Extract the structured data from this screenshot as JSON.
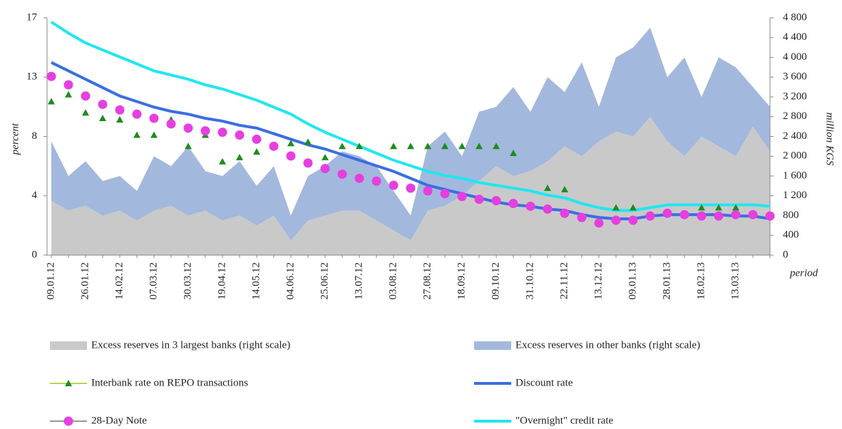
{
  "chart_data": {
    "type": "line",
    "y_label": "percent",
    "y2_label": "million KGS",
    "x_label": "period",
    "categories": [
      "09.01.12",
      null,
      "26.01.12",
      null,
      "14.02.12",
      null,
      "07.03.12",
      null,
      "30.03.12",
      null,
      "19.04.12",
      null,
      "14.05.12",
      null,
      "04.06.12",
      null,
      "25.06.12",
      null,
      "13.07.12",
      null,
      "03.08.12",
      null,
      "27.08.12",
      null,
      "18.09.12",
      null,
      "09.10.12",
      null,
      "31.10.12",
      null,
      "22.11.12",
      null,
      "13.12.12",
      null,
      "09.01.13",
      null,
      "28.01.13",
      null,
      "18.02.13",
      null,
      "13.03.13",
      null,
      null
    ],
    "ylim": [
      0,
      17
    ],
    "yticks": [
      0,
      {
        "value": 4.25,
        "label": "4"
      },
      {
        "value": 8.5,
        "label": "8"
      },
      {
        "value": 12.75,
        "label": "13"
      },
      17
    ],
    "y2lim": [
      0,
      4800
    ],
    "y2ticks": [
      0,
      400,
      800,
      {
        "value": 1200,
        "label": "1 200"
      },
      {
        "value": 1600,
        "label": "1 600"
      },
      {
        "value": 2000,
        "label": "2 000"
      },
      {
        "value": 2400,
        "label": "2 400"
      },
      {
        "value": 2800,
        "label": "2 800"
      },
      {
        "value": 3200,
        "label": "3 200"
      },
      {
        "value": 3600,
        "label": "3 600"
      },
      {
        "value": 4000,
        "label": "4 000"
      },
      {
        "value": 4400,
        "label": "4 400"
      },
      {
        "value": 4800,
        "label": "4 800"
      }
    ],
    "stacked_areas": true,
    "grid": false,
    "series": [
      {
        "name": "Excess reserves in 3 largest banks  (right scale)",
        "kind": "area",
        "axis": "y2",
        "color": "#c9c9c9",
        "values": [
          1100,
          900,
          1000,
          800,
          900,
          700,
          900,
          1000,
          800,
          900,
          700,
          800,
          600,
          800,
          300,
          700,
          800,
          900,
          900,
          700,
          500,
          300,
          900,
          1000,
          1200,
          1500,
          1800,
          1600,
          1700,
          1900,
          2200,
          2000,
          2300,
          2500,
          2400,
          2800,
          2300,
          2000,
          2400,
          2200,
          2000,
          2600,
          2100
        ]
      },
      {
        "name": "Excess reserves in other banks (right scale)",
        "kind": "area",
        "axis": "y2",
        "color": "#a3b8dd",
        "values": [
          1200,
          700,
          900,
          700,
          700,
          600,
          1100,
          800,
          1400,
          800,
          900,
          1100,
          800,
          1000,
          500,
          900,
          1000,
          1200,
          1100,
          1100,
          800,
          500,
          1300,
          1500,
          800,
          1400,
          1200,
          1800,
          1200,
          1700,
          1100,
          1900,
          700,
          1500,
          1800,
          1800,
          1300,
          2000,
          800,
          1800,
          1800,
          800,
          900
        ]
      },
      {
        "name": "Interbank rate on REPO transactions",
        "kind": "marker",
        "marker": "triangle",
        "color": "#1e8c1e",
        "values": [
          11.0,
          11.5,
          10.2,
          9.8,
          9.7,
          8.6,
          8.6,
          9.7,
          7.8,
          8.6,
          6.7,
          7.0,
          7.4,
          null,
          8.0,
          8.1,
          7.0,
          7.8,
          7.8,
          null,
          7.8,
          7.8,
          7.8,
          7.8,
          7.8,
          7.8,
          7.8,
          7.3,
          null,
          4.8,
          4.7,
          null,
          null,
          3.4,
          3.4,
          null,
          null,
          null,
          3.4,
          3.4,
          3.4,
          null,
          null
        ]
      },
      {
        "name": "Discount rate",
        "kind": "line",
        "color": "#3b6ee0",
        "values": [
          13.8,
          13.2,
          12.6,
          12.0,
          11.4,
          11.0,
          10.6,
          10.3,
          10.1,
          9.8,
          9.6,
          9.3,
          9.1,
          8.7,
          8.3,
          7.9,
          7.6,
          7.2,
          6.8,
          6.4,
          6.0,
          5.5,
          5.0,
          4.7,
          4.4,
          4.1,
          3.8,
          3.6,
          3.5,
          3.3,
          3.2,
          2.9,
          2.7,
          2.6,
          2.6,
          2.8,
          2.9,
          2.9,
          2.9,
          2.9,
          2.8,
          2.8,
          2.6
        ]
      },
      {
        "name": "28-Day Note",
        "kind": "marker",
        "marker": "circle",
        "color": "#e63fe0",
        "values": [
          12.8,
          12.2,
          11.4,
          10.8,
          10.4,
          10.1,
          9.8,
          9.4,
          9.1,
          8.9,
          8.8,
          8.6,
          8.3,
          7.8,
          7.1,
          6.6,
          6.2,
          5.8,
          5.5,
          5.3,
          5.0,
          4.8,
          4.6,
          4.4,
          4.2,
          4.0,
          3.9,
          3.7,
          3.5,
          3.3,
          3.0,
          2.7,
          2.3,
          2.5,
          2.5,
          2.8,
          3.0,
          2.9,
          2.8,
          2.8,
          2.9,
          2.9,
          2.8
        ]
      },
      {
        "name": "\"Overnight\" credit rate",
        "kind": "line",
        "color": "#22e6f0",
        "values": [
          16.7,
          15.9,
          15.2,
          14.7,
          14.2,
          13.7,
          13.2,
          12.9,
          12.6,
          12.2,
          11.9,
          11.5,
          11.1,
          10.6,
          10.1,
          9.4,
          8.8,
          8.3,
          7.8,
          7.3,
          6.8,
          6.4,
          6.0,
          5.7,
          5.5,
          5.2,
          5.0,
          4.8,
          4.6,
          4.3,
          4.1,
          3.7,
          3.4,
          3.2,
          3.2,
          3.4,
          3.6,
          3.6,
          3.6,
          3.6,
          3.6,
          3.6,
          3.5
        ]
      }
    ]
  }
}
